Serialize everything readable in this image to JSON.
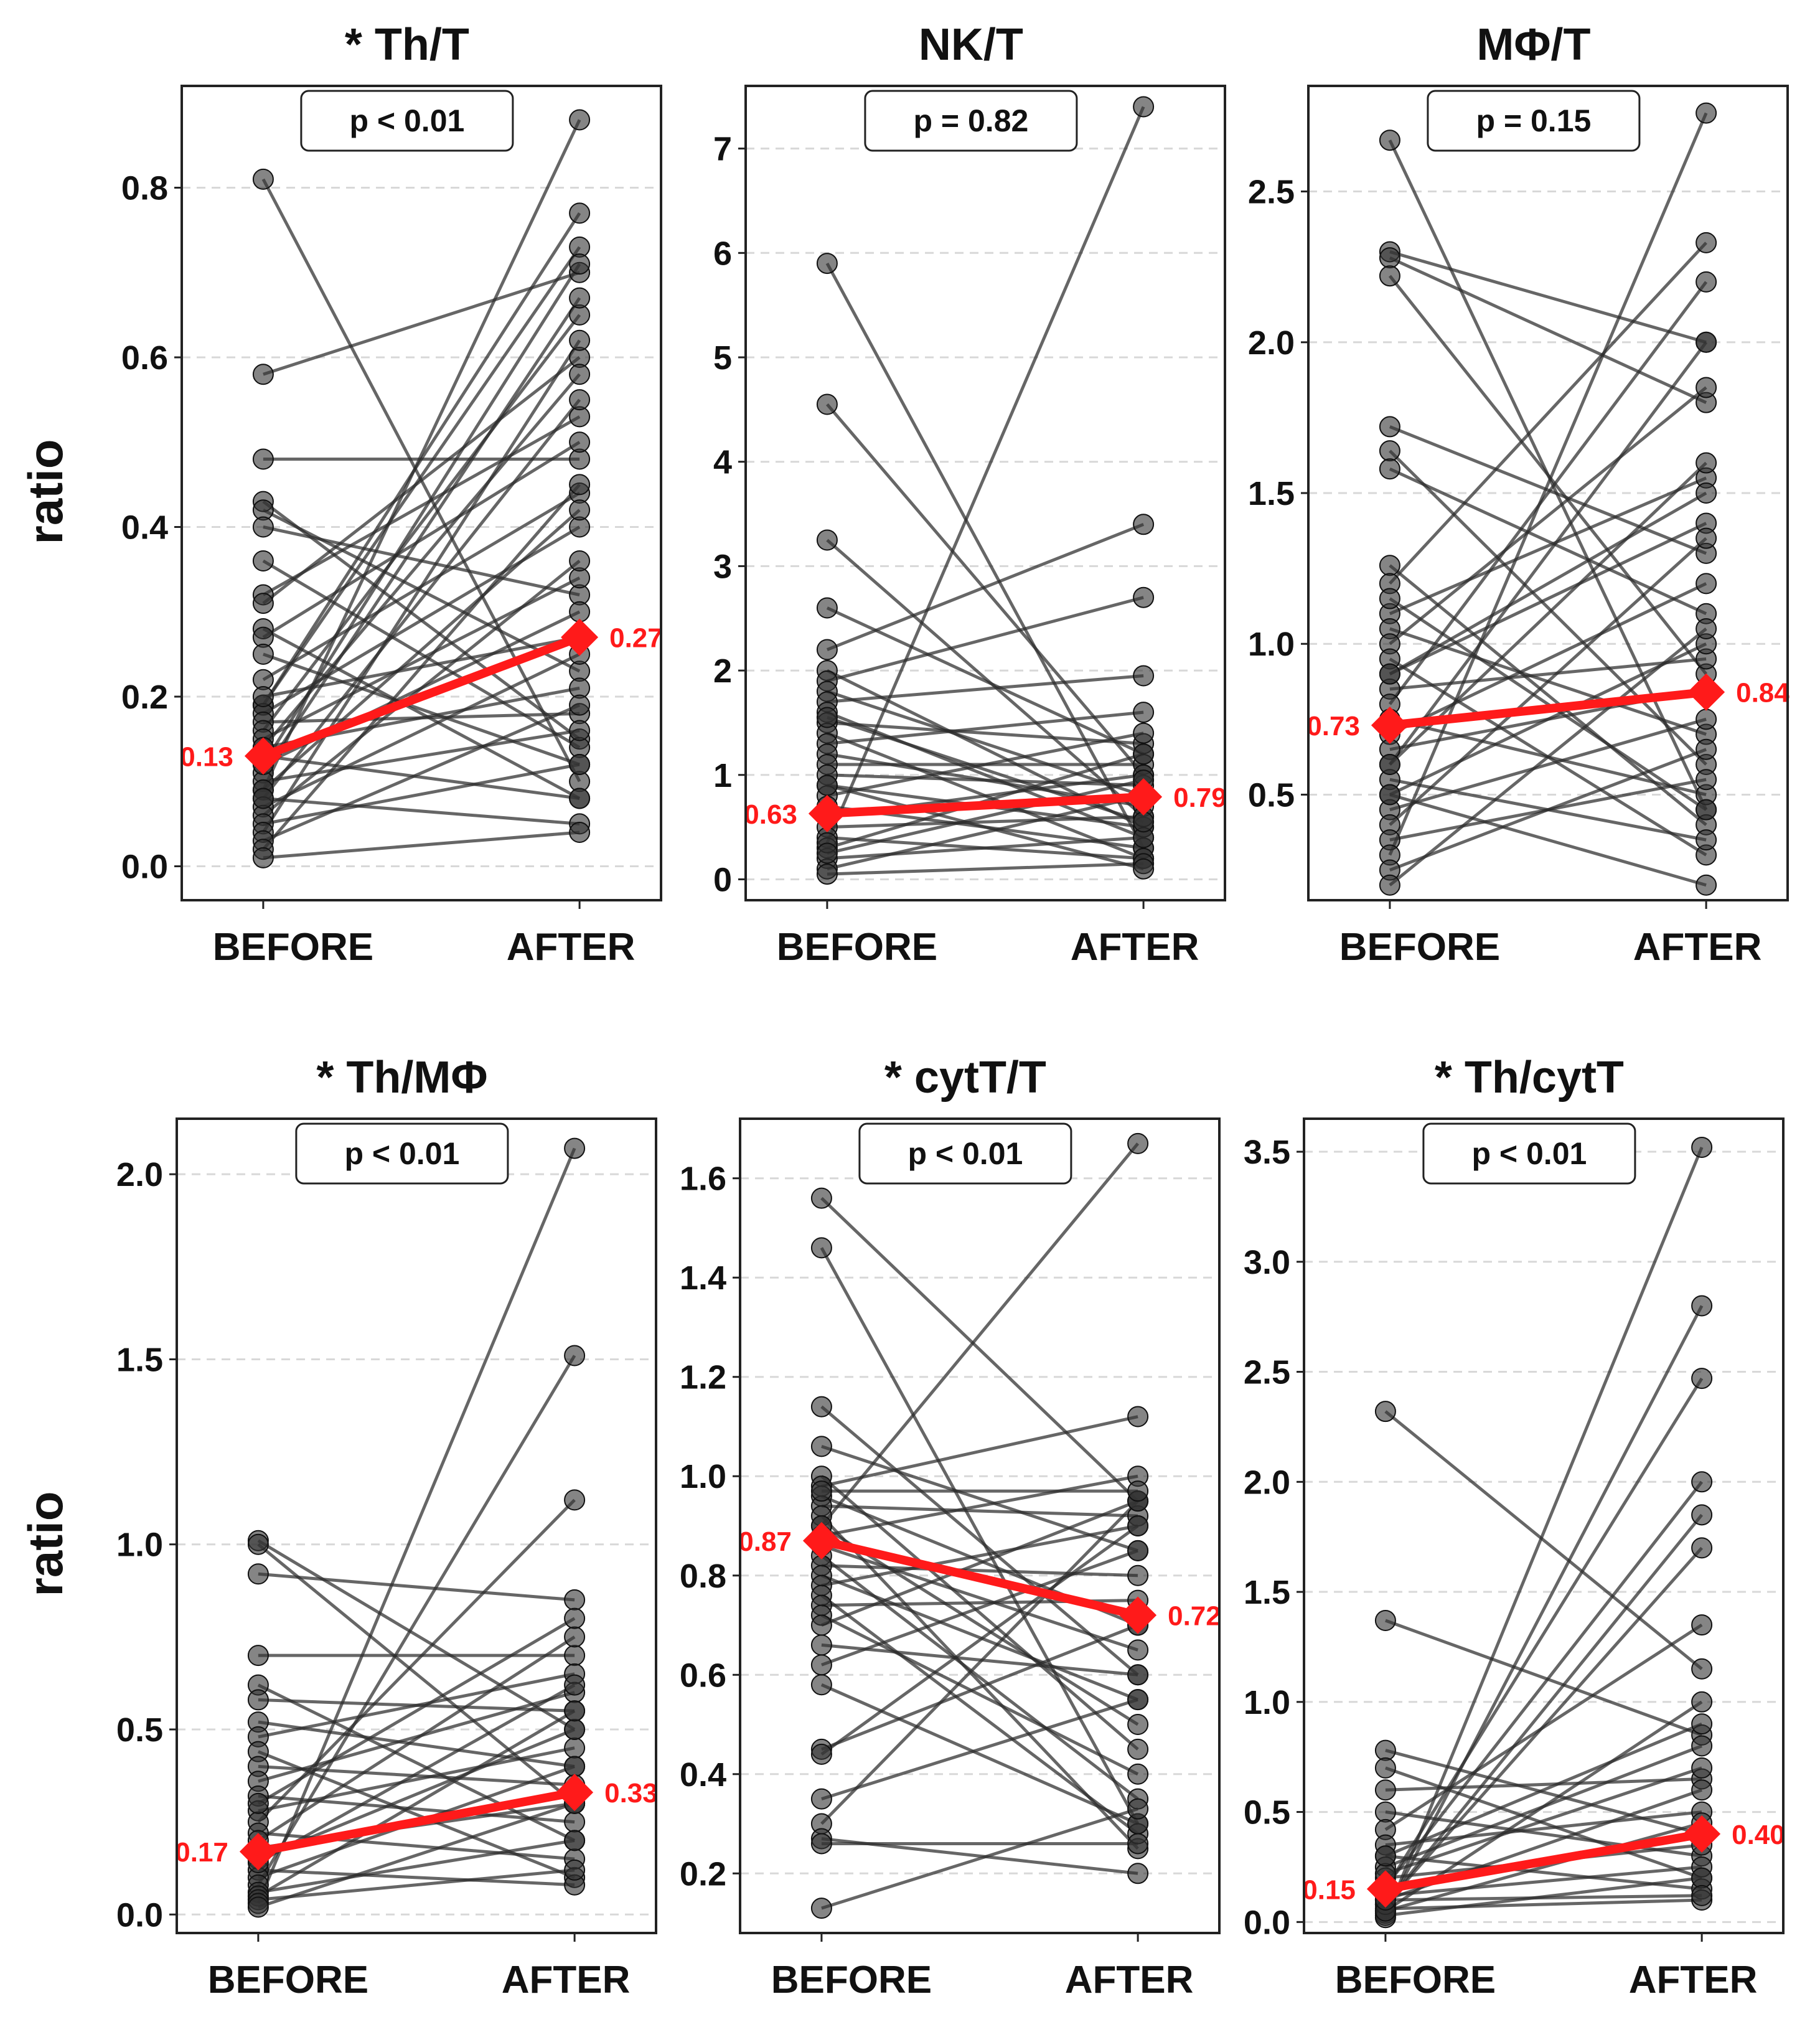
{
  "figure": {
    "ylabel": "ratio",
    "categories": [
      "BEFORE",
      "AFTER"
    ],
    "colors": {
      "paired_line": "#2b2b2b",
      "paired_point": "#333333",
      "mean_line": "#ff1a1a",
      "grid": "#d8d8d8",
      "frame": "#222222"
    }
  },
  "chart_data": [
    {
      "type": "line",
      "title": "* Th/T",
      "p_label": "p < 0.01",
      "categories": [
        "BEFORE",
        "AFTER"
      ],
      "ylabel": "ratio",
      "ylim": [
        -0.04,
        0.92
      ],
      "yticks": [
        0.0,
        0.2,
        0.4,
        0.6,
        0.8
      ],
      "tick_labels": [
        "0.0",
        "0.2",
        "0.4",
        "0.6",
        "0.8"
      ],
      "mean": {
        "before": 0.13,
        "after": 0.27,
        "before_label": "0.13",
        "after_label": "0.27"
      },
      "pairs": [
        [
          0.81,
          0.1
        ],
        [
          0.58,
          0.7
        ],
        [
          0.48,
          0.48
        ],
        [
          0.43,
          0.15
        ],
        [
          0.42,
          0.23
        ],
        [
          0.4,
          0.32
        ],
        [
          0.36,
          0.14
        ],
        [
          0.32,
          0.53
        ],
        [
          0.31,
          0.6
        ],
        [
          0.28,
          0.08
        ],
        [
          0.27,
          0.5
        ],
        [
          0.25,
          0.12
        ],
        [
          0.22,
          0.44
        ],
        [
          0.19,
          0.77
        ],
        [
          0.19,
          0.73
        ],
        [
          0.18,
          0.4
        ],
        [
          0.17,
          0.18
        ],
        [
          0.16,
          0.65
        ],
        [
          0.15,
          0.34
        ],
        [
          0.14,
          0.21
        ],
        [
          0.14,
          0.58
        ],
        [
          0.13,
          0.08
        ],
        [
          0.12,
          0.3
        ],
        [
          0.11,
          0.67
        ],
        [
          0.1,
          0.16
        ],
        [
          0.09,
          0.42
        ],
        [
          0.09,
          0.88
        ],
        [
          0.08,
          0.05
        ],
        [
          0.07,
          0.25
        ],
        [
          0.06,
          0.36
        ],
        [
          0.05,
          0.12
        ],
        [
          0.04,
          0.62
        ],
        [
          0.03,
          0.19
        ],
        [
          0.02,
          0.45
        ],
        [
          0.01,
          0.04
        ],
        [
          0.12,
          0.71
        ],
        [
          0.2,
          0.27
        ],
        [
          0.08,
          0.55
        ]
      ]
    },
    {
      "type": "line",
      "title": "NK/T",
      "p_label": "p = 0.82",
      "categories": [
        "BEFORE",
        "AFTER"
      ],
      "ylabel": "ratio",
      "ylim": [
        -0.2,
        7.6
      ],
      "yticks": [
        0,
        1,
        2,
        3,
        4,
        5,
        6,
        7
      ],
      "tick_labels": [
        "0",
        "1",
        "2",
        "3",
        "4",
        "5",
        "6",
        "7"
      ],
      "mean": {
        "before": 0.63,
        "after": 0.79,
        "before_label": "0.63",
        "after_label": "0.79"
      },
      "pairs": [
        [
          5.9,
          0.3
        ],
        [
          4.55,
          1.0
        ],
        [
          3.25,
          0.6
        ],
        [
          2.6,
          1.2
        ],
        [
          2.2,
          3.4
        ],
        [
          2.0,
          0.5
        ],
        [
          1.9,
          2.7
        ],
        [
          1.8,
          0.8
        ],
        [
          1.7,
          1.95
        ],
        [
          1.6,
          0.4
        ],
        [
          1.5,
          1.3
        ],
        [
          1.4,
          0.2
        ],
        [
          1.3,
          1.6
        ],
        [
          1.2,
          0.7
        ],
        [
          1.1,
          1.1
        ],
        [
          1.0,
          0.9
        ],
        [
          0.9,
          0.5
        ],
        [
          0.8,
          1.4
        ],
        [
          0.7,
          0.3
        ],
        [
          0.6,
          1.0
        ],
        [
          0.5,
          0.6
        ],
        [
          0.4,
          0.2
        ],
        [
          0.3,
          1.2
        ],
        [
          0.2,
          0.4
        ],
        [
          0.1,
          0.8
        ],
        [
          0.05,
          0.15
        ],
        [
          0.35,
          7.4
        ],
        [
          0.9,
          0.1
        ],
        [
          1.55,
          0.55
        ],
        [
          0.25,
          0.95
        ]
      ]
    },
    {
      "type": "line",
      "title": "MΦ/T",
      "p_label": "p = 0.15",
      "categories": [
        "BEFORE",
        "AFTER"
      ],
      "ylabel": "ratio",
      "ylim": [
        0.15,
        2.85
      ],
      "yticks": [
        0.5,
        1.0,
        1.5,
        2.0,
        2.5
      ],
      "tick_labels": [
        "0.5",
        "1.0",
        "1.5",
        "2.0",
        "2.5"
      ],
      "mean": {
        "before": 0.73,
        "after": 0.84,
        "before_label": "0.73",
        "after_label": "0.84"
      },
      "pairs": [
        [
          2.67,
          0.45
        ],
        [
          2.3,
          2.0
        ],
        [
          2.28,
          1.8
        ],
        [
          2.22,
          0.9
        ],
        [
          1.72,
          1.3
        ],
        [
          1.64,
          0.6
        ],
        [
          1.58,
          1.1
        ],
        [
          1.26,
          0.4
        ],
        [
          1.2,
          2.33
        ],
        [
          1.1,
          1.55
        ],
        [
          1.05,
          0.7
        ],
        [
          1.0,
          1.85
        ],
        [
          0.95,
          0.3
        ],
        [
          0.9,
          1.4
        ],
        [
          0.85,
          0.95
        ],
        [
          0.8,
          2.2
        ],
        [
          0.75,
          0.5
        ],
        [
          0.7,
          1.2
        ],
        [
          0.65,
          0.85
        ],
        [
          0.6,
          1.6
        ],
        [
          0.55,
          0.35
        ],
        [
          0.5,
          1.0
        ],
        [
          0.45,
          0.75
        ],
        [
          0.4,
          1.35
        ],
        [
          0.35,
          0.55
        ],
        [
          0.3,
          2.76
        ],
        [
          0.25,
          0.65
        ],
        [
          0.2,
          1.05
        ],
        [
          0.5,
          0.2
        ],
        [
          0.9,
          1.5
        ],
        [
          1.15,
          0.45
        ],
        [
          0.6,
          2.0
        ]
      ]
    },
    {
      "type": "line",
      "title": "* Th/MΦ",
      "p_label": "p < 0.01",
      "categories": [
        "BEFORE",
        "AFTER"
      ],
      "ylabel": "ratio",
      "ylim": [
        -0.05,
        2.15
      ],
      "yticks": [
        0.0,
        0.5,
        1.0,
        1.5,
        2.0
      ],
      "tick_labels": [
        "0.0",
        "0.5",
        "1.0",
        "1.5",
        "2.0"
      ],
      "mean": {
        "before": 0.17,
        "after": 0.33,
        "before_label": "0.17",
        "after_label": "0.33"
      },
      "pairs": [
        [
          1.01,
          0.5
        ],
        [
          1.0,
          0.3
        ],
        [
          0.92,
          0.85
        ],
        [
          0.7,
          0.7
        ],
        [
          0.62,
          0.2
        ],
        [
          0.58,
          0.55
        ],
        [
          0.52,
          0.4
        ],
        [
          0.48,
          0.65
        ],
        [
          0.44,
          0.1
        ],
        [
          0.4,
          0.35
        ],
        [
          0.36,
          0.6
        ],
        [
          0.32,
          0.25
        ],
        [
          0.28,
          0.45
        ],
        [
          0.25,
          1.12
        ],
        [
          0.22,
          0.15
        ],
        [
          0.2,
          0.75
        ],
        [
          0.18,
          0.3
        ],
        [
          0.15,
          0.5
        ],
        [
          0.12,
          0.08
        ],
        [
          0.1,
          0.4
        ],
        [
          0.08,
          1.51
        ],
        [
          0.06,
          0.2
        ],
        [
          0.05,
          0.55
        ],
        [
          0.04,
          0.12
        ],
        [
          0.03,
          2.07
        ],
        [
          0.02,
          0.3
        ],
        [
          0.3,
          0.8
        ],
        [
          0.14,
          0.62
        ]
      ]
    },
    {
      "type": "line",
      "title": "* cytT/T",
      "p_label": "p < 0.01",
      "categories": [
        "BEFORE",
        "AFTER"
      ],
      "ylabel": "ratio",
      "ylim": [
        0.08,
        1.72
      ],
      "yticks": [
        0.2,
        0.4,
        0.6,
        0.8,
        1.0,
        1.2,
        1.4,
        1.6
      ],
      "tick_labels": [
        "0.2",
        "0.4",
        "0.6",
        "0.8",
        "1.0",
        "1.2",
        "1.4",
        "1.6"
      ],
      "mean": {
        "before": 0.87,
        "after": 0.72,
        "before_label": "0.87",
        "after_label": "0.72"
      },
      "pairs": [
        [
          1.56,
          0.95
        ],
        [
          1.46,
          0.3
        ],
        [
          1.14,
          0.6
        ],
        [
          1.06,
          0.85
        ],
        [
          1.0,
          0.45
        ],
        [
          0.98,
          1.12
        ],
        [
          0.96,
          0.7
        ],
        [
          0.94,
          0.92
        ],
        [
          0.92,
          0.25
        ],
        [
          0.9,
          0.5
        ],
        [
          0.88,
          1.0
        ],
        [
          0.86,
          0.65
        ],
        [
          0.84,
          0.35
        ],
        [
          0.82,
          0.8
        ],
        [
          0.8,
          0.55
        ],
        [
          0.78,
          0.9
        ],
        [
          0.76,
          0.28
        ],
        [
          0.74,
          0.75
        ],
        [
          0.72,
          0.4
        ],
        [
          0.7,
          0.95
        ],
        [
          0.66,
          0.6
        ],
        [
          0.62,
          0.85
        ],
        [
          0.58,
          0.3
        ],
        [
          0.45,
          0.7
        ],
        [
          0.44,
          0.9
        ],
        [
          0.35,
          0.55
        ],
        [
          0.3,
          0.95
        ],
        [
          0.27,
          0.2
        ],
        [
          0.13,
          0.33
        ],
        [
          0.26,
          0.26
        ],
        [
          0.9,
          1.67
        ],
        [
          0.97,
          0.97
        ]
      ]
    },
    {
      "type": "line",
      "title": "* Th/cytT",
      "p_label": "p < 0.01",
      "categories": [
        "BEFORE",
        "AFTER"
      ],
      "ylabel": "ratio",
      "ylim": [
        -0.05,
        3.65
      ],
      "yticks": [
        0.0,
        0.5,
        1.0,
        1.5,
        2.0,
        2.5,
        3.0,
        3.5
      ],
      "tick_labels": [
        "0.0",
        "0.5",
        "1.0",
        "1.5",
        "2.0",
        "2.5",
        "3.0",
        "3.5"
      ],
      "mean": {
        "before": 0.15,
        "after": 0.4,
        "before_label": "0.15",
        "after_label": "0.40"
      },
      "pairs": [
        [
          2.32,
          1.15
        ],
        [
          1.37,
          0.85
        ],
        [
          0.78,
          0.4
        ],
        [
          0.7,
          0.2
        ],
        [
          0.6,
          0.65
        ],
        [
          0.5,
          0.3
        ],
        [
          0.42,
          1.35
        ],
        [
          0.35,
          0.5
        ],
        [
          0.3,
          0.15
        ],
        [
          0.25,
          0.8
        ],
        [
          0.2,
          0.35
        ],
        [
          0.16,
          2.0
        ],
        [
          0.12,
          0.25
        ],
        [
          0.1,
          0.6
        ],
        [
          0.08,
          1.7
        ],
        [
          0.06,
          0.1
        ],
        [
          0.05,
          0.45
        ],
        [
          0.04,
          2.8
        ],
        [
          0.03,
          0.2
        ],
        [
          0.02,
          3.52
        ],
        [
          0.15,
          2.47
        ],
        [
          0.08,
          1.85
        ],
        [
          0.22,
          0.7
        ],
        [
          0.05,
          1.0
        ],
        [
          0.3,
          0.9
        ],
        [
          0.1,
          0.12
        ]
      ]
    }
  ]
}
